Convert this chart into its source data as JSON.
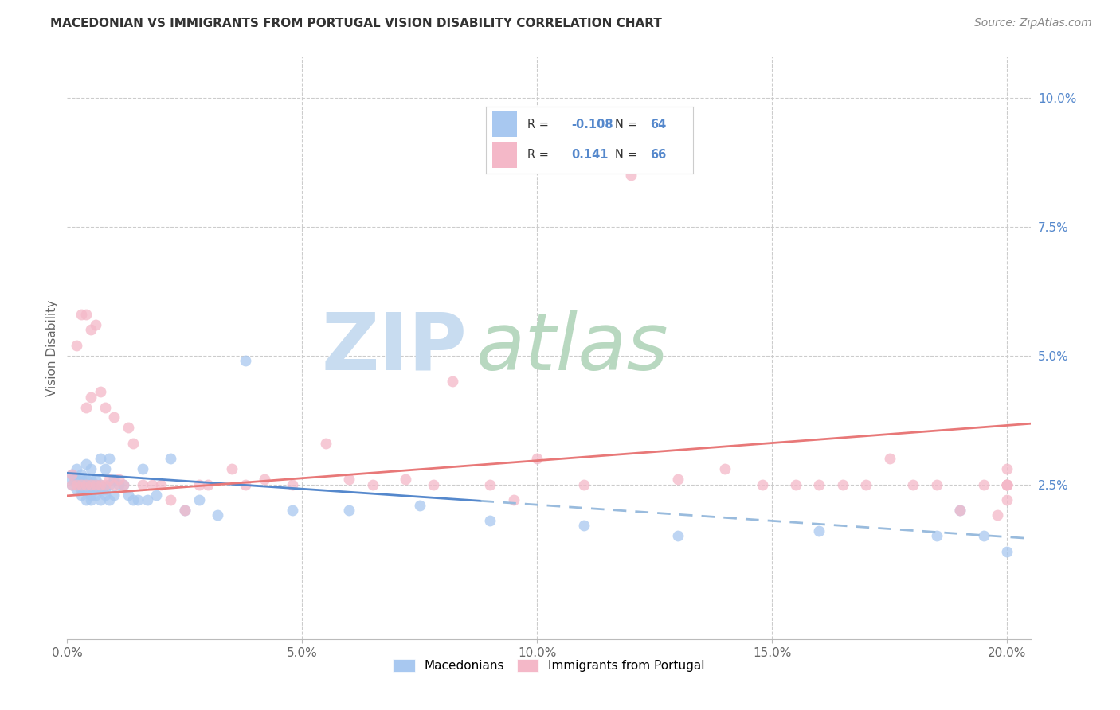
{
  "title": "MACEDONIAN VS IMMIGRANTS FROM PORTUGAL VISION DISABILITY CORRELATION CHART",
  "source": "Source: ZipAtlas.com",
  "ylabel": "Vision Disability",
  "xlim": [
    0.0,
    0.205
  ],
  "ylim": [
    -0.005,
    0.108
  ],
  "xticks": [
    0.0,
    0.05,
    0.1,
    0.15,
    0.2
  ],
  "xtick_labels": [
    "0.0%",
    "5.0%",
    "10.0%",
    "15.0%",
    "20.0%"
  ],
  "ytick_vals": [
    0.025,
    0.05,
    0.075,
    0.1
  ],
  "ytick_labels": [
    "2.5%",
    "5.0%",
    "7.5%",
    "10.0%"
  ],
  "color_macedonian": "#a8c8f0",
  "color_portugal": "#f4b8c8",
  "color_line_macedonian_solid": "#5588cc",
  "color_line_macedonian_dashed": "#99bbdd",
  "color_line_portugal": "#e87878",
  "trend_mac_x0": 0.0,
  "trend_mac_y0": 0.0272,
  "trend_mac_x_split": 0.088,
  "trend_mac_y_split": 0.0218,
  "trend_mac_x1": 0.205,
  "trend_mac_y1": 0.0145,
  "trend_port_x0": 0.0,
  "trend_port_y0": 0.0228,
  "trend_port_x1": 0.205,
  "trend_port_y1": 0.0368,
  "mac_x": [
    0.001,
    0.001,
    0.001,
    0.002,
    0.002,
    0.002,
    0.002,
    0.003,
    0.003,
    0.003,
    0.003,
    0.003,
    0.004,
    0.004,
    0.004,
    0.004,
    0.004,
    0.005,
    0.005,
    0.005,
    0.005,
    0.005,
    0.005,
    0.005,
    0.006,
    0.006,
    0.006,
    0.006,
    0.007,
    0.007,
    0.007,
    0.007,
    0.008,
    0.008,
    0.008,
    0.009,
    0.009,
    0.009,
    0.01,
    0.01,
    0.011,
    0.012,
    0.013,
    0.014,
    0.015,
    0.016,
    0.017,
    0.019,
    0.022,
    0.025,
    0.028,
    0.032,
    0.038,
    0.048,
    0.06,
    0.075,
    0.09,
    0.11,
    0.13,
    0.16,
    0.185,
    0.19,
    0.195,
    0.2
  ],
  "mac_y": [
    0.025,
    0.026,
    0.027,
    0.024,
    0.025,
    0.026,
    0.028,
    0.023,
    0.024,
    0.025,
    0.026,
    0.027,
    0.022,
    0.024,
    0.025,
    0.026,
    0.029,
    0.022,
    0.023,
    0.024,
    0.025,
    0.025,
    0.026,
    0.028,
    0.023,
    0.024,
    0.025,
    0.026,
    0.022,
    0.024,
    0.025,
    0.03,
    0.023,
    0.024,
    0.028,
    0.022,
    0.025,
    0.03,
    0.023,
    0.026,
    0.025,
    0.025,
    0.023,
    0.022,
    0.022,
    0.028,
    0.022,
    0.023,
    0.03,
    0.02,
    0.022,
    0.019,
    0.049,
    0.02,
    0.02,
    0.021,
    0.018,
    0.017,
    0.015,
    0.016,
    0.015,
    0.02,
    0.015,
    0.012
  ],
  "port_x": [
    0.001,
    0.001,
    0.002,
    0.002,
    0.003,
    0.003,
    0.004,
    0.004,
    0.004,
    0.005,
    0.005,
    0.005,
    0.006,
    0.006,
    0.007,
    0.007,
    0.008,
    0.008,
    0.009,
    0.01,
    0.01,
    0.011,
    0.012,
    0.013,
    0.014,
    0.016,
    0.018,
    0.02,
    0.022,
    0.025,
    0.028,
    0.03,
    0.035,
    0.038,
    0.042,
    0.048,
    0.055,
    0.06,
    0.065,
    0.072,
    0.078,
    0.082,
    0.09,
    0.095,
    0.1,
    0.11,
    0.12,
    0.13,
    0.14,
    0.148,
    0.155,
    0.16,
    0.165,
    0.17,
    0.175,
    0.18,
    0.185,
    0.19,
    0.195,
    0.198,
    0.2,
    0.2,
    0.2,
    0.2,
    0.2,
    0.2
  ],
  "port_y": [
    0.025,
    0.027,
    0.025,
    0.052,
    0.025,
    0.058,
    0.025,
    0.04,
    0.058,
    0.025,
    0.042,
    0.055,
    0.025,
    0.056,
    0.025,
    0.043,
    0.025,
    0.04,
    0.026,
    0.025,
    0.038,
    0.026,
    0.025,
    0.036,
    0.033,
    0.025,
    0.025,
    0.025,
    0.022,
    0.02,
    0.025,
    0.025,
    0.028,
    0.025,
    0.026,
    0.025,
    0.033,
    0.026,
    0.025,
    0.026,
    0.025,
    0.045,
    0.025,
    0.022,
    0.03,
    0.025,
    0.085,
    0.026,
    0.028,
    0.025,
    0.025,
    0.025,
    0.025,
    0.025,
    0.03,
    0.025,
    0.025,
    0.02,
    0.025,
    0.019,
    0.025,
    0.025,
    0.022,
    0.025,
    0.025,
    0.028
  ],
  "background_color": "#ffffff",
  "grid_color": "#cccccc",
  "title_fontsize": 11,
  "source_fontsize": 10,
  "tick_fontsize": 11,
  "ylabel_fontsize": 11
}
